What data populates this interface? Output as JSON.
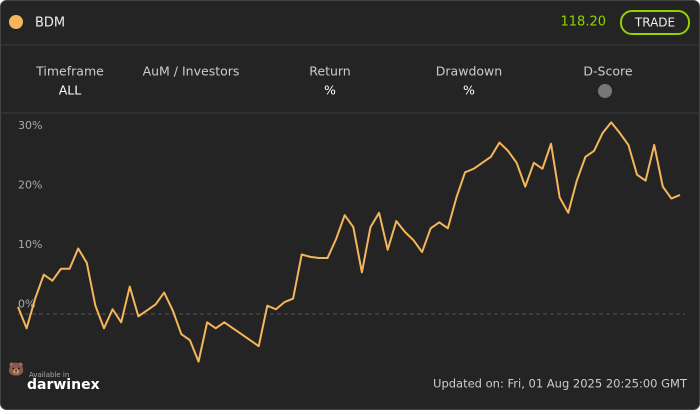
{
  "header": {
    "symbol": "BDM",
    "price": "118.20",
    "button": "TRADE"
  },
  "stats": [
    {
      "label": "Timeframe",
      "value": "ALL"
    },
    {
      "label": "AuM / Investors",
      "value": ""
    },
    {
      "label": "Return",
      "value": "%"
    },
    {
      "label": "Drawdown",
      "value": "%"
    },
    {
      "label": "D-Score"
    }
  ],
  "chart_data": {
    "type": "line",
    "color": "#f5b55a",
    "ylim": [
      -10,
      32
    ],
    "yticks": [
      {
        "value": 0,
        "label": "0%"
      },
      {
        "value": 10,
        "label": "10%"
      },
      {
        "value": 20,
        "label": "20%"
      },
      {
        "value": 30,
        "label": "30%"
      }
    ],
    "values": [
      -0.4,
      -4,
      1,
      5,
      4,
      6,
      6,
      9.4,
      7,
      -0.2,
      -4,
      -0.8,
      -3,
      3,
      -2,
      -1,
      0,
      2,
      -1,
      -5,
      -6,
      -9.6,
      -3,
      -4,
      -3,
      -4,
      -5,
      -6,
      -7,
      -0.2,
      -0.8,
      0.4,
      1,
      8.4,
      8,
      7.8,
      7.8,
      11,
      15,
      13,
      5.4,
      13,
      15.4,
      9.2,
      14,
      12.2,
      10.8,
      8.8,
      12.8,
      13.8,
      12.8,
      18,
      22.2,
      22.8,
      23.8,
      24.8,
      27.2,
      25.8,
      23.8,
      19.8,
      23.8,
      22.8,
      27,
      18,
      15.4,
      20.8,
      24.8,
      25.8,
      28.8,
      30.6,
      28.8,
      26.8,
      21.8,
      20.8,
      26.8,
      19.8,
      17.8,
      18.4
    ]
  },
  "footer": {
    "available": "Available in",
    "brand": "darwinex",
    "updated": "Updated on: Fri, 01 Aug 2025 20:25:00 GMT"
  }
}
